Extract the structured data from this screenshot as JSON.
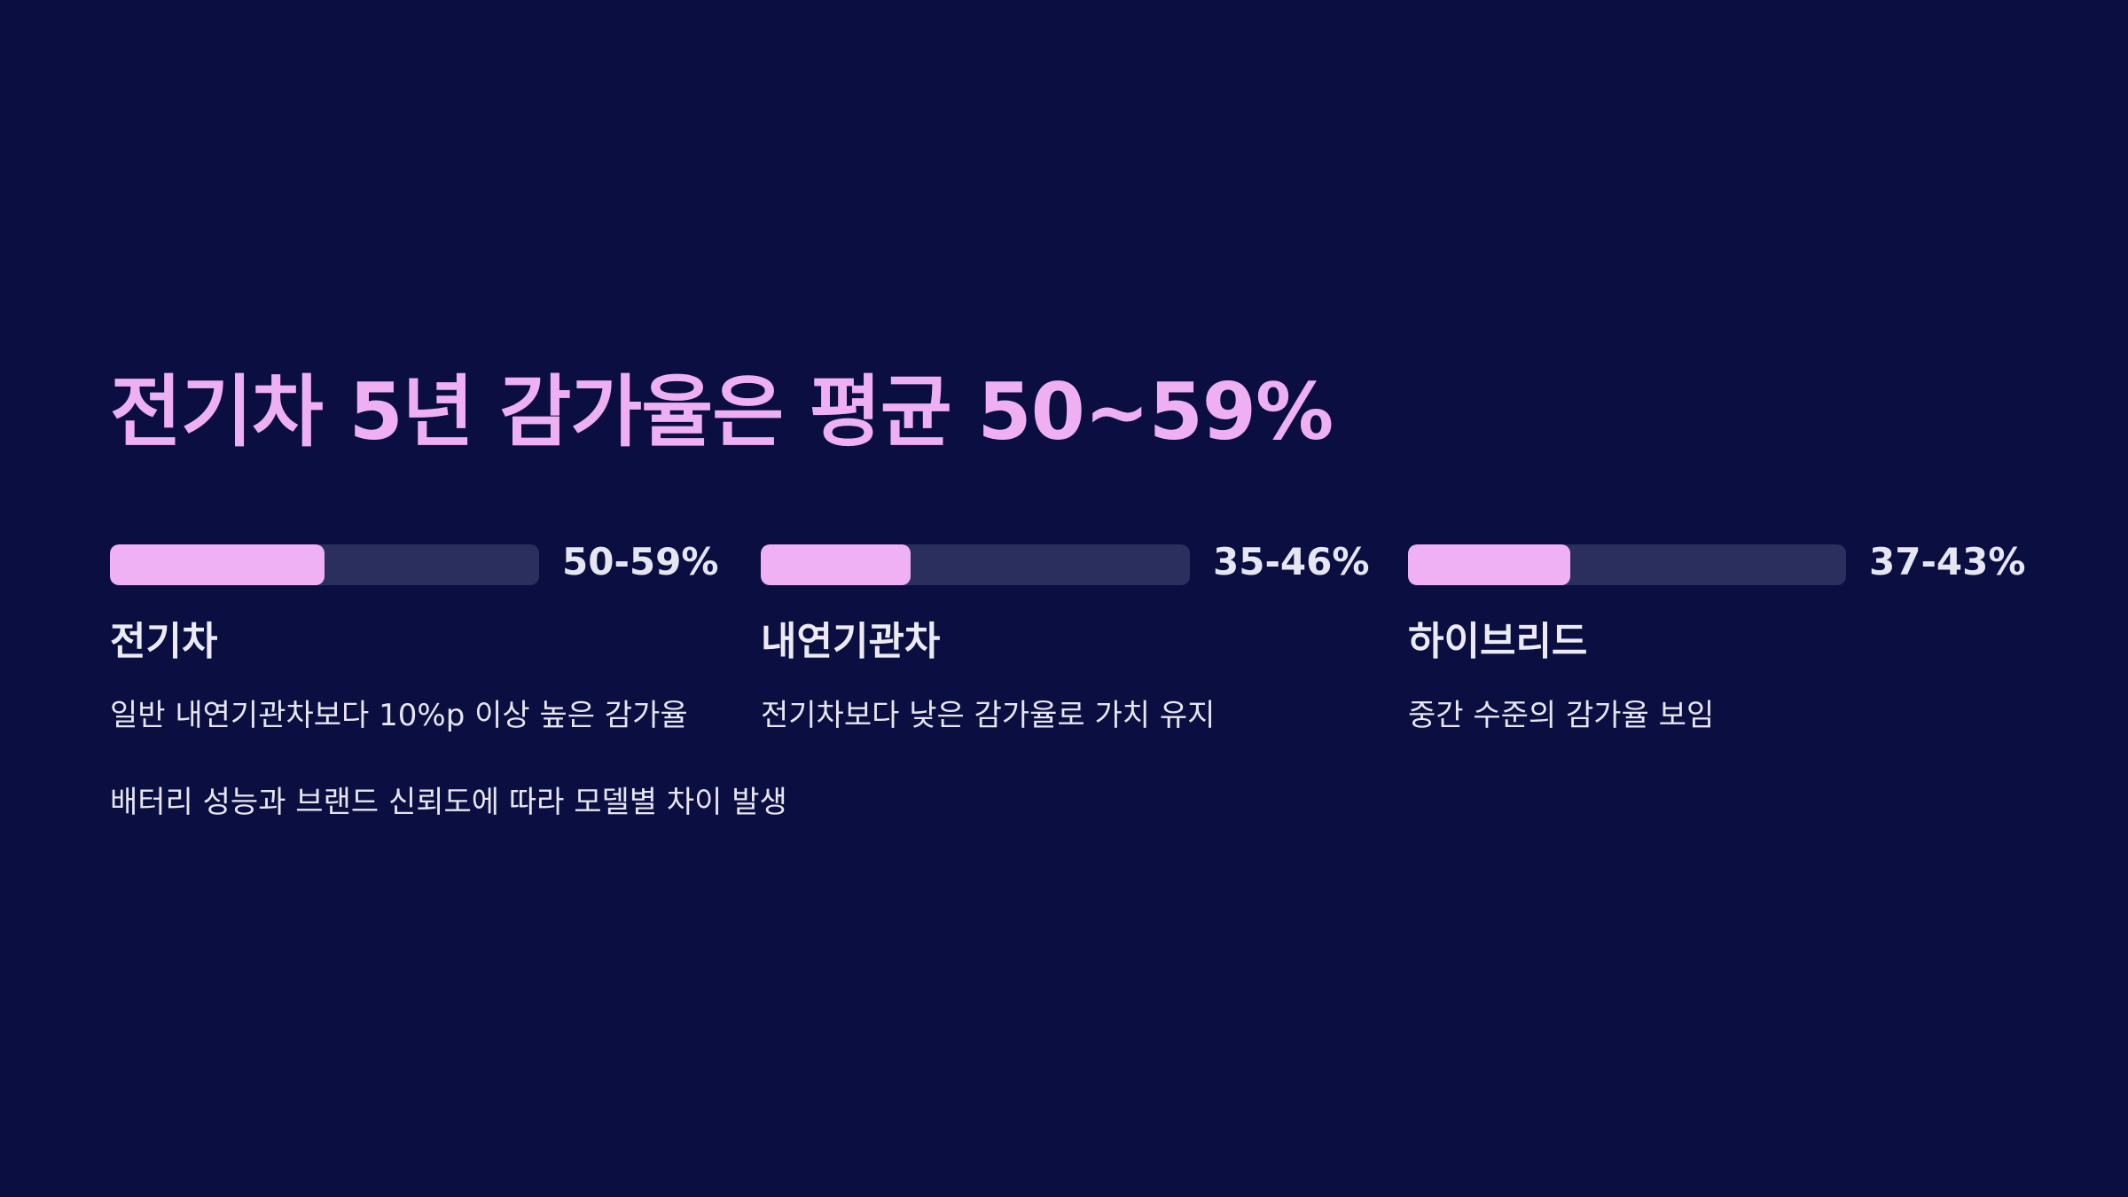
{
  "title": "전기차 5년 감가율은 평균 50~59%",
  "metrics": [
    {
      "label": "전기차",
      "value_text": "50-59%",
      "progress": 0.5,
      "description": "일반 내연기관차보다 10%p 이상 높은 감가율"
    },
    {
      "label": "내연기관차",
      "value_text": "35-46%",
      "progress": 0.35,
      "description": "전기차보다 낮은 감가율로 가치 유지"
    },
    {
      "label": "하이브리드",
      "value_text": "37-43%",
      "progress": 0.37,
      "description": "중간 수준의 감가율 보임"
    }
  ],
  "footnote": "배터리 성능과 브랜드 신뢰도에 따라 모델별 차이 발생",
  "colors": {
    "background": "#0a0e40",
    "accent": "#eeb0f2",
    "track": "#2a2f5e"
  }
}
